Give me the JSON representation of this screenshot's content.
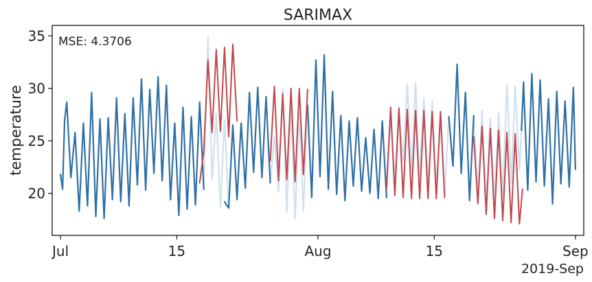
{
  "chart_data": {
    "type": "line",
    "title": "SARIMAX",
    "ylabel": "temperature",
    "xlabel": "",
    "annotation": "MSE: 4.3706",
    "x_ticks": [
      "Jul",
      "15",
      "Aug",
      "15",
      "Sep"
    ],
    "x_offset_label": "2019-Sep",
    "y_ticks": [
      "20",
      "25",
      "30",
      "35"
    ],
    "ylim": [
      16.0,
      36.0
    ],
    "xlim": [
      "2019-06-30T00:00",
      "2019-09-02T00:00"
    ],
    "grid": false,
    "series": [
      {
        "role": "observed",
        "color": "#2e6fa5",
        "points": [
          [
            "2019-07-01T00:00",
            21.8
          ],
          [
            "2019-07-01T06:00",
            20.4
          ],
          [
            "2019-07-01T12:00",
            27.0
          ],
          [
            "2019-07-01T18:00",
            28.7
          ],
          [
            "2019-07-02T06:00",
            21.5
          ],
          [
            "2019-07-02T18:00",
            25.8
          ],
          [
            "2019-07-03T06:00",
            18.3
          ],
          [
            "2019-07-03T18:00",
            26.7
          ],
          [
            "2019-07-04T06:00",
            18.8
          ],
          [
            "2019-07-04T18:00",
            29.6
          ],
          [
            "2019-07-05T06:00",
            17.8
          ],
          [
            "2019-07-05T18:00",
            27.1
          ],
          [
            "2019-07-06T06:00",
            17.6
          ],
          [
            "2019-07-06T18:00",
            27.2
          ],
          [
            "2019-07-07T06:00",
            19.4
          ],
          [
            "2019-07-07T18:00",
            29.1
          ],
          [
            "2019-07-08T06:00",
            19.2
          ],
          [
            "2019-07-08T18:00",
            27.6
          ],
          [
            "2019-07-09T06:00",
            18.8
          ],
          [
            "2019-07-09T18:00",
            29.1
          ],
          [
            "2019-07-10T06:00",
            20.8
          ],
          [
            "2019-07-10T18:00",
            30.9
          ],
          [
            "2019-07-11T06:00",
            20.3
          ],
          [
            "2019-07-11T18:00",
            29.9
          ],
          [
            "2019-07-12T06:00",
            21.9
          ],
          [
            "2019-07-12T18:00",
            31.1
          ],
          [
            "2019-07-13T06:00",
            21.2
          ],
          [
            "2019-07-13T18:00",
            30.3
          ],
          [
            "2019-07-14T06:00",
            19.4
          ],
          [
            "2019-07-14T18:00",
            26.7
          ],
          [
            "2019-07-15T06:00",
            17.9
          ],
          [
            "2019-07-15T18:00",
            28.2
          ],
          [
            "2019-07-16T06:00",
            18.5
          ],
          [
            "2019-07-16T18:00",
            27.3
          ],
          [
            "2019-07-17T06:00",
            18.9
          ],
          [
            "2019-07-17T18:00",
            28.7
          ],
          [
            "2019-07-18T06:00",
            20.4
          ]
        ]
      },
      {
        "role": "observed",
        "color": "#2e6fa5",
        "points": [
          [
            "2019-07-20T18:00",
            19.2
          ],
          [
            "2019-07-21T06:00",
            18.6
          ],
          [
            "2019-07-21T18:00",
            26.5
          ],
          [
            "2019-07-22T06:00",
            19.4
          ],
          [
            "2019-07-22T18:00",
            26.7
          ],
          [
            "2019-07-23T06:00",
            20.5
          ],
          [
            "2019-07-23T18:00",
            29.6
          ],
          [
            "2019-07-24T06:00",
            22.0
          ],
          [
            "2019-07-24T18:00",
            30.1
          ],
          [
            "2019-07-25T06:00",
            21.5
          ],
          [
            "2019-07-25T18:00",
            29.2
          ],
          [
            "2019-07-26T06:00",
            21.0
          ]
        ]
      },
      {
        "role": "observed",
        "color": "#2e6fa5",
        "points": [
          [
            "2019-07-30T18:00",
            28.4
          ],
          [
            "2019-07-31T06:00",
            19.6
          ],
          [
            "2019-07-31T18:00",
            32.7
          ],
          [
            "2019-08-01T06:00",
            21.6
          ],
          [
            "2019-08-01T18:00",
            33.2
          ],
          [
            "2019-08-02T06:00",
            20.4
          ],
          [
            "2019-08-02T18:00",
            29.7
          ],
          [
            "2019-08-03T06:00",
            19.9
          ],
          [
            "2019-08-03T18:00",
            27.4
          ],
          [
            "2019-08-04T06:00",
            19.3
          ],
          [
            "2019-08-04T18:00",
            26.9
          ],
          [
            "2019-08-05T06:00",
            20.7
          ],
          [
            "2019-08-05T18:00",
            27.2
          ],
          [
            "2019-08-06T06:00",
            20.2
          ],
          [
            "2019-08-06T18:00",
            25.3
          ],
          [
            "2019-08-07T06:00",
            20.0
          ],
          [
            "2019-08-07T18:00",
            26.1
          ],
          [
            "2019-08-08T06:00",
            19.5
          ],
          [
            "2019-08-08T18:00",
            26.9
          ],
          [
            "2019-08-09T06:00",
            19.6
          ]
        ]
      },
      {
        "role": "observed",
        "color": "#2e6fa5",
        "points": [
          [
            "2019-08-16T18:00",
            27.3
          ],
          [
            "2019-08-17T06:00",
            22.6
          ],
          [
            "2019-08-17T18:00",
            32.3
          ],
          [
            "2019-08-18T06:00",
            21.9
          ],
          [
            "2019-08-18T18:00",
            29.6
          ],
          [
            "2019-08-19T06:00",
            19.3
          ],
          [
            "2019-08-19T18:00",
            27.4
          ]
        ]
      },
      {
        "role": "observed",
        "color": "#2e6fa5",
        "points": [
          [
            "2019-08-25T12:00",
            26.0
          ],
          [
            "2019-08-25T18:00",
            30.6
          ],
          [
            "2019-08-26T06:00",
            20.3
          ],
          [
            "2019-08-26T18:00",
            31.4
          ],
          [
            "2019-08-27T06:00",
            21.1
          ],
          [
            "2019-08-27T18:00",
            30.8
          ],
          [
            "2019-08-28T06:00",
            20.7
          ],
          [
            "2019-08-28T18:00",
            29.0
          ],
          [
            "2019-08-29T06:00",
            19.0
          ],
          [
            "2019-08-29T18:00",
            29.7
          ],
          [
            "2019-08-30T06:00",
            20.9
          ],
          [
            "2019-08-30T18:00",
            28.8
          ],
          [
            "2019-08-31T06:00",
            20.6
          ],
          [
            "2019-08-31T18:00",
            30.1
          ],
          [
            "2019-09-01T00:00",
            22.3
          ]
        ]
      },
      {
        "role": "actual_in_forecast_window",
        "color": "#cfe1ee",
        "points": [
          [
            "2019-07-18T06:00",
            20.4
          ],
          [
            "2019-07-18T18:00",
            34.9
          ],
          [
            "2019-07-19T06:00",
            21.3
          ],
          [
            "2019-07-19T18:00",
            27.6
          ],
          [
            "2019-07-20T06:00",
            18.7
          ],
          [
            "2019-07-20T18:00",
            27.0
          ],
          [
            "2019-07-21T06:00",
            18.6
          ],
          [
            "2019-07-26T06:00",
            21.0
          ],
          [
            "2019-07-26T18:00",
            25.4
          ],
          [
            "2019-07-27T06:00",
            20.1
          ],
          [
            "2019-07-27T18:00",
            29.8
          ],
          [
            "2019-07-28T06:00",
            18.2
          ],
          [
            "2019-07-28T18:00",
            28.1
          ],
          [
            "2019-07-29T06:00",
            17.6
          ],
          [
            "2019-07-29T18:00",
            27.7
          ],
          [
            "2019-07-30T06:00",
            18.3
          ],
          [
            "2019-07-30T18:00",
            28.4
          ],
          [
            "2019-08-09T06:00",
            19.6
          ],
          [
            "2019-08-09T18:00",
            27.6
          ],
          [
            "2019-08-10T06:00",
            21.4
          ],
          [
            "2019-08-10T18:00",
            28.2
          ],
          [
            "2019-08-11T06:00",
            23.1
          ],
          [
            "2019-08-11T18:00",
            30.4
          ],
          [
            "2019-08-12T06:00",
            21.9
          ],
          [
            "2019-08-12T18:00",
            30.5
          ],
          [
            "2019-08-13T06:00",
            21.6
          ],
          [
            "2019-08-13T18:00",
            29.1
          ],
          [
            "2019-08-14T06:00",
            20.8
          ],
          [
            "2019-08-14T18:00",
            28.8
          ],
          [
            "2019-08-15T06:00",
            20.4
          ],
          [
            "2019-08-15T18:00",
            27.4
          ],
          [
            "2019-08-16T06:00",
            19.9
          ],
          [
            "2019-08-16T18:00",
            27.3
          ],
          [
            "2019-08-19T18:00",
            27.4
          ],
          [
            "2019-08-20T06:00",
            19.8
          ],
          [
            "2019-08-20T18:00",
            27.9
          ],
          [
            "2019-08-21T06:00",
            18.7
          ],
          [
            "2019-08-21T18:00",
            27.1
          ],
          [
            "2019-08-22T06:00",
            19.4
          ],
          [
            "2019-08-22T18:00",
            27.6
          ],
          [
            "2019-08-23T06:00",
            19.8
          ],
          [
            "2019-08-23T18:00",
            30.4
          ],
          [
            "2019-08-24T06:00",
            21.0
          ],
          [
            "2019-08-24T18:00",
            30.2
          ],
          [
            "2019-08-25T06:00",
            22.2
          ],
          [
            "2019-08-25T12:00",
            26.0
          ]
        ]
      },
      {
        "role": "forecast",
        "color": "#c0464b",
        "points": [
          [
            "2019-07-17T18:00",
            21.0
          ],
          [
            "2019-07-18T06:00",
            24.0
          ],
          [
            "2019-07-18T18:00",
            32.7
          ],
          [
            "2019-07-19T06:00",
            25.8
          ],
          [
            "2019-07-19T18:00",
            33.7
          ],
          [
            "2019-07-20T06:00",
            25.9
          ],
          [
            "2019-07-20T18:00",
            33.9
          ],
          [
            "2019-07-21T06:00",
            25.4
          ],
          [
            "2019-07-21T18:00",
            34.2
          ],
          [
            "2019-07-22T06:00",
            26.9
          ]
        ]
      },
      {
        "role": "forecast",
        "color": "#c0464b",
        "points": [
          [
            "2019-07-26T06:00",
            23.1
          ],
          [
            "2019-07-26T18:00",
            30.2
          ],
          [
            "2019-07-27T06:00",
            21.2
          ],
          [
            "2019-07-27T18:00",
            29.5
          ],
          [
            "2019-07-28T06:00",
            21.3
          ],
          [
            "2019-07-28T18:00",
            30.0
          ],
          [
            "2019-07-29T06:00",
            21.1
          ],
          [
            "2019-07-29T18:00",
            30.0
          ],
          [
            "2019-07-30T06:00",
            21.8
          ],
          [
            "2019-07-30T18:00",
            29.9
          ]
        ]
      },
      {
        "role": "forecast",
        "color": "#c0464b",
        "points": [
          [
            "2019-08-09T06:00",
            20.5
          ],
          [
            "2019-08-09T18:00",
            28.2
          ],
          [
            "2019-08-10T06:00",
            19.8
          ],
          [
            "2019-08-10T18:00",
            28.1
          ],
          [
            "2019-08-11T06:00",
            19.6
          ],
          [
            "2019-08-11T18:00",
            28.0
          ],
          [
            "2019-08-12T06:00",
            19.5
          ],
          [
            "2019-08-12T18:00",
            27.9
          ],
          [
            "2019-08-13T06:00",
            19.5
          ],
          [
            "2019-08-13T18:00",
            27.9
          ],
          [
            "2019-08-14T06:00",
            19.5
          ],
          [
            "2019-08-14T18:00",
            27.8
          ],
          [
            "2019-08-15T06:00",
            19.5
          ],
          [
            "2019-08-15T18:00",
            27.8
          ],
          [
            "2019-08-16T06:00",
            19.6
          ]
        ]
      },
      {
        "role": "forecast",
        "color": "#c0464b",
        "points": [
          [
            "2019-08-19T18:00",
            25.4
          ],
          [
            "2019-08-20T06:00",
            19.0
          ],
          [
            "2019-08-20T18:00",
            26.4
          ],
          [
            "2019-08-21T06:00",
            18.0
          ],
          [
            "2019-08-21T18:00",
            26.2
          ],
          [
            "2019-08-22T06:00",
            17.6
          ],
          [
            "2019-08-22T18:00",
            26.0
          ],
          [
            "2019-08-23T06:00",
            17.4
          ],
          [
            "2019-08-23T18:00",
            25.8
          ],
          [
            "2019-08-24T06:00",
            17.2
          ],
          [
            "2019-08-24T18:00",
            25.7
          ],
          [
            "2019-08-25T06:00",
            17.1
          ],
          [
            "2019-08-25T15:00",
            20.4
          ]
        ]
      }
    ]
  }
}
